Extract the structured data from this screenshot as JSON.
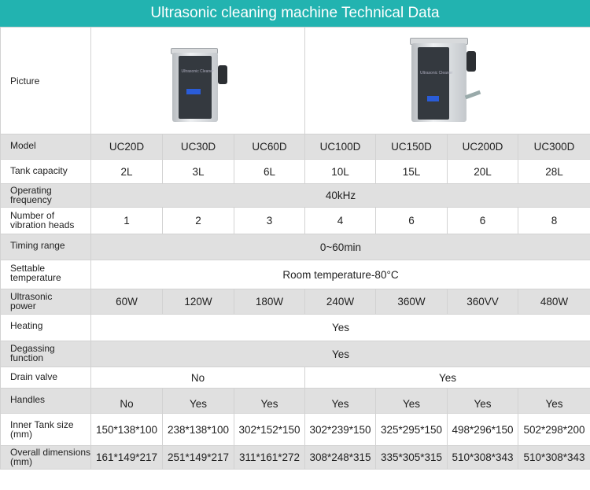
{
  "title": "Ultrasonic cleaning machine Technical Data",
  "labels": {
    "picture": "Picture",
    "model": "Model",
    "tank": "Tank capacity",
    "freq": "Operating frequency",
    "heads": "Number of vibration heads",
    "timing": "Timing range",
    "temp": "Settable temperature",
    "power": "Ultrasonic power",
    "heating": "Heating",
    "degas": "Degassing function",
    "drain": "Drain valve",
    "handles": "Handles",
    "inner": "Inner Tank size (mm)",
    "overall": "Overall dimensions (mm)"
  },
  "picture_text": "Ultrasonic Cleaner",
  "models": [
    "UC20D",
    "UC30D",
    "UC60D",
    "UC100D",
    "UC150D",
    "UC200D",
    "UC300D"
  ],
  "tank": [
    "2L",
    "3L",
    "6L",
    "10L",
    "15L",
    "20L",
    "28L"
  ],
  "freq": "40kHz",
  "heads": [
    "1",
    "2",
    "3",
    "4",
    "6",
    "6",
    "8"
  ],
  "timing": "0~60min",
  "temp": "Room temperature-80°C",
  "power": [
    "60W",
    "120W",
    "180W",
    "240W",
    "360W",
    "360VV",
    "480W"
  ],
  "heating": "Yes",
  "degas": "Yes",
  "drain": {
    "no": "No",
    "yes": "Yes"
  },
  "handles": [
    "No",
    "Yes",
    "Yes",
    "Yes",
    "Yes",
    "Yes",
    "Yes"
  ],
  "inner": [
    "150*138*100",
    "238*138*100",
    "302*152*150",
    "302*239*150",
    "325*295*150",
    "498*296*150",
    "502*298*200"
  ],
  "overall": [
    "161*149*217",
    "251*149*217",
    "311*161*272",
    "308*248*315",
    "335*305*315",
    "510*308*343",
    "510*308*343"
  ],
  "colors": {
    "header": "#22b3b0",
    "row_shade": "#e0e0e0"
  }
}
